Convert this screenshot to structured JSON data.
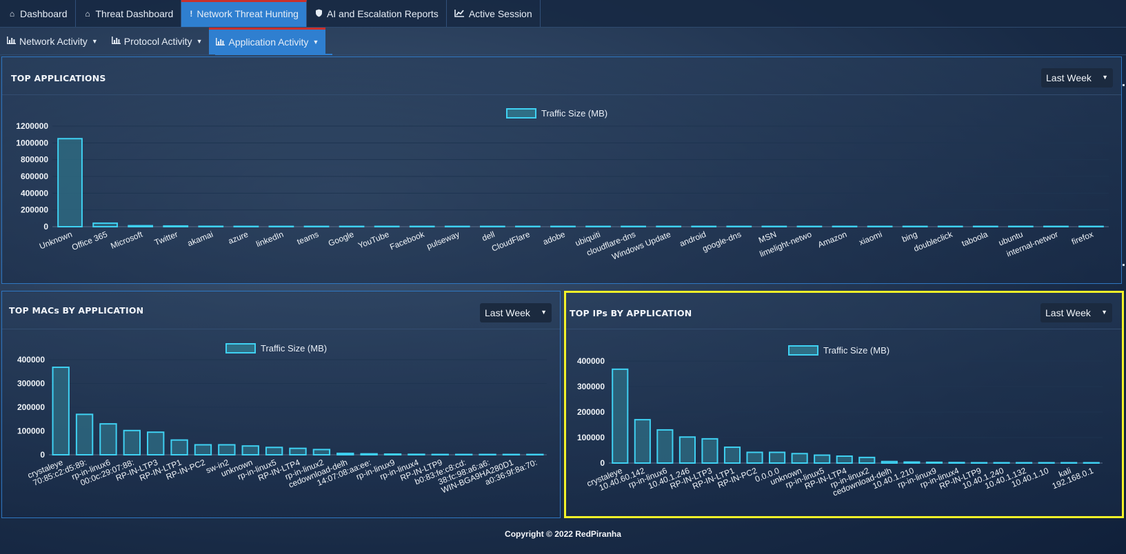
{
  "nav": {
    "tabs": [
      {
        "label": "Dashboard",
        "icon": "home-icon"
      },
      {
        "label": "Threat Dashboard",
        "icon": "home-icon"
      },
      {
        "label": "Network Threat Hunting",
        "icon": "exclamation-icon"
      },
      {
        "label": "AI and Escalation Reports",
        "icon": "shield-icon"
      },
      {
        "label": "Active Session",
        "icon": "line-chart-icon"
      }
    ]
  },
  "subnav": {
    "tabs": [
      {
        "label": "Network Activity",
        "icon": "bar-chart-icon"
      },
      {
        "label": "Protocol Activity",
        "icon": "bar-chart-icon"
      },
      {
        "label": "Application Activity",
        "icon": "bar-chart-icon"
      }
    ]
  },
  "panels": {
    "apps": {
      "title": "TOP APPLICATIONS",
      "range": "Last Week"
    },
    "macs": {
      "title": "TOP MACs BY APPLICATION",
      "range": "Last Week"
    },
    "ips": {
      "title": "TOP IPs BY APPLICATION",
      "range": "Last Week"
    }
  },
  "footer": {
    "text": "Copyright © 2022 RedPiranha"
  },
  "colors": {
    "bar_stroke": "#3fd1f2",
    "bar_fill": "#2f6f86",
    "active_tab": "#2f7fd0",
    "highlight": "#f2f228"
  },
  "chart_data": [
    {
      "type": "bar",
      "title": "TOP APPLICATIONS",
      "legend": "Traffic Size (MB)",
      "categories": [
        "Unknown",
        "Office 365",
        "Microsoft",
        "Twitter",
        "akamai",
        "azure",
        "linkedIn",
        "teams",
        "Google",
        "YouTube",
        "Facebook",
        "pulseway",
        "dell",
        "CloudFlare",
        "adobe",
        "ubiquiti",
        "cloudflare-dns",
        "Windows Update",
        "android",
        "google-dns",
        "MSN",
        "limelight-netwo",
        "Amazon",
        "xiaomi",
        "bing",
        "doubleclick",
        "taboola",
        "ubuntu",
        "internal-networ",
        "firefox"
      ],
      "values": [
        1050000,
        42000,
        12000,
        9000,
        5000,
        3000,
        1500,
        1200,
        1000,
        800,
        600,
        500,
        400,
        300,
        250,
        200,
        150,
        120,
        100,
        80,
        70,
        60,
        50,
        40,
        30,
        25,
        20,
        15,
        10,
        5
      ],
      "yticks": [
        0,
        200000,
        400000,
        600000,
        800000,
        1000000,
        1200000
      ],
      "ylim": [
        0,
        1200000
      ]
    },
    {
      "type": "bar",
      "title": "TOP MACs BY APPLICATION",
      "legend": "Traffic Size (MB)",
      "categories": [
        "crystaleye",
        "70:85:c2:d5:89:",
        "rp-in-linux6",
        "00:0c:29:07:88:",
        "RP-IN-LTP3",
        "RP-IN-LTP1",
        "RP-IN-PC2",
        "sw-in2",
        "unknown",
        "rp-in-linux5",
        "RP-IN-LTP4",
        "rp-in-linux2",
        "cedownload-delh",
        "14:07:08:aa:ee:",
        "rp-in-linux9",
        "rp-in-linux4",
        "RP-IN-LTP9",
        "b0:83:fe:c8:cd:",
        "38:fc:98:a6:a6:",
        "WIN-BGA9HA280D1",
        "a0:36:9f:8a:70:"
      ],
      "values": [
        368000,
        170000,
        130000,
        102000,
        95000,
        62000,
        42000,
        42000,
        37000,
        31000,
        27000,
        22000,
        6000,
        4000,
        3000,
        2000,
        1000,
        500,
        300,
        200,
        100
      ],
      "yticks": [
        0,
        100000,
        200000,
        300000,
        400000
      ],
      "ylim": [
        0,
        400000
      ]
    },
    {
      "type": "bar",
      "title": "TOP IPs BY APPLICATION",
      "legend": "Traffic Size (MB)",
      "categories": [
        "crystaleye",
        "10.40.60.142",
        "rp-in-linux6",
        "10.40.1.246",
        "RP-IN-LTP3",
        "RP-IN-LTP1",
        "RP-IN-PC2",
        "0.0.0.0",
        "unknown",
        "rp-in-linux5",
        "RP-IN-LTP4",
        "rp-in-linux2",
        "cedownload-delh",
        "10.40.1.210",
        "rp-in-linux9",
        "rp-in-linux4",
        "RP-IN-LTP9",
        "10.40.1.240",
        "10.40.1.132",
        "10.40.1.10",
        "kali",
        "192.168.0.1"
      ],
      "values": [
        368000,
        170000,
        130000,
        102000,
        95000,
        62000,
        42000,
        42000,
        37000,
        31000,
        27000,
        22000,
        6000,
        4000,
        3000,
        2000,
        1000,
        500,
        300,
        200,
        100,
        50
      ],
      "yticks": [
        0,
        100000,
        200000,
        300000,
        400000
      ],
      "ylim": [
        0,
        400000
      ]
    }
  ]
}
